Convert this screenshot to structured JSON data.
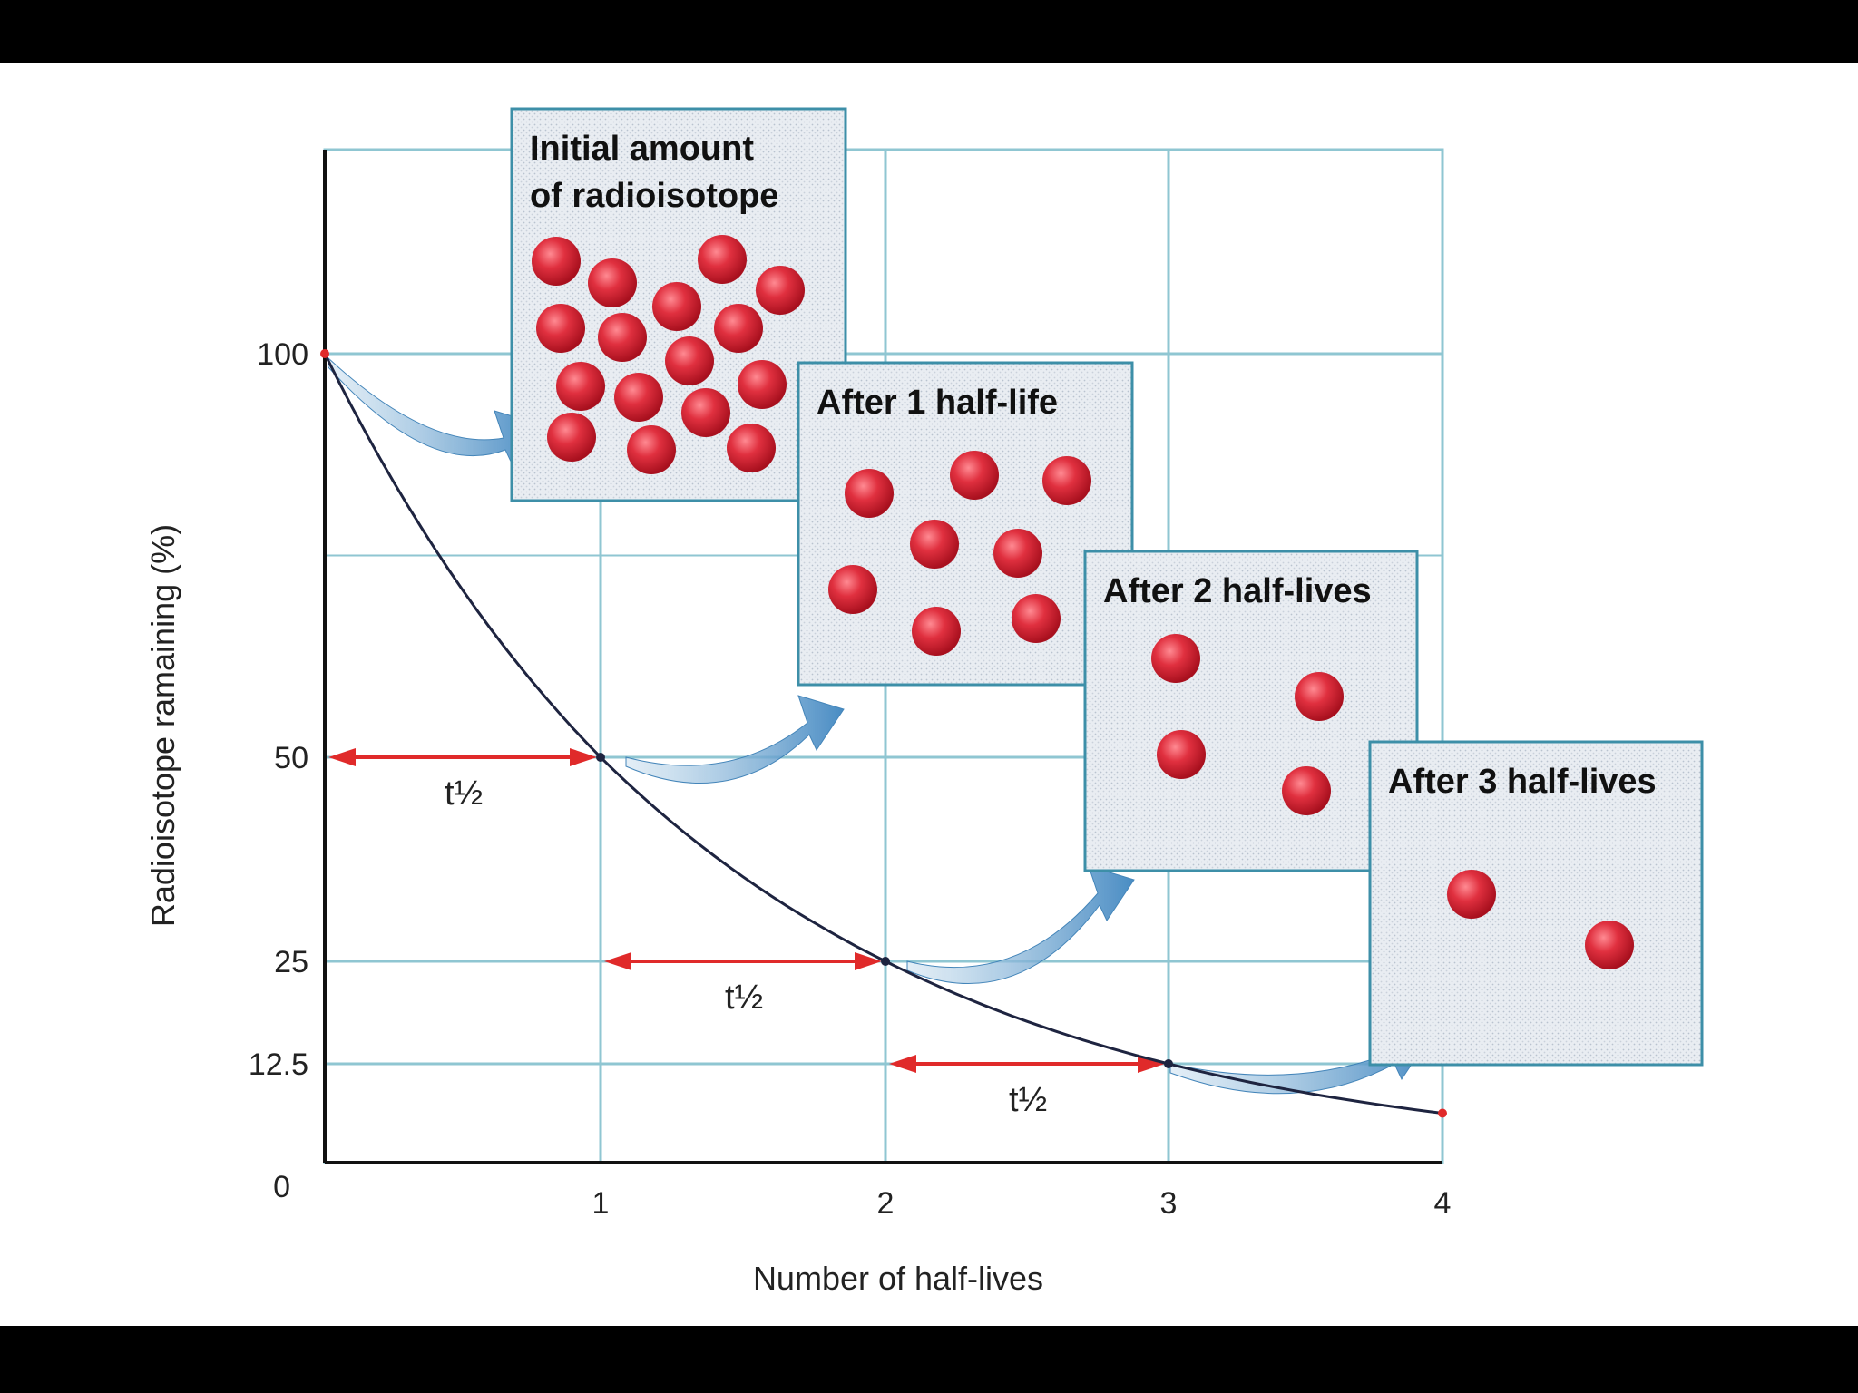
{
  "chart_data": {
    "type": "line",
    "xlabel": "Number of half-lives",
    "ylabel": "Radioisotope ramaining (%)",
    "x_ticks": [
      "0",
      "1",
      "2",
      "3",
      "4"
    ],
    "y_ticks": [
      "0",
      "12.5",
      "25",
      "50",
      "100"
    ],
    "xlim": [
      0,
      4
    ],
    "ylim": [
      0,
      125
    ],
    "grid": true,
    "series": [
      {
        "x": [
          0,
          1,
          2,
          3,
          4
        ],
        "y": [
          100,
          50,
          25,
          12.5,
          6.25
        ]
      }
    ],
    "intervals": [
      {
        "from": 0,
        "to": 1,
        "y": 50,
        "label": "t½"
      },
      {
        "from": 1,
        "to": 2,
        "y": 25,
        "label": "t½"
      },
      {
        "from": 2,
        "to": 3,
        "y": 12.5,
        "label": "t½"
      }
    ],
    "panels": [
      {
        "title_lines": [
          "Initial amount",
          "of radioisotope"
        ],
        "particles": 16
      },
      {
        "title_lines": [
          "After 1 half-life"
        ],
        "particles": 8
      },
      {
        "title_lines": [
          "After 2 half-lives"
        ],
        "particles": 4
      },
      {
        "title_lines": [
          "After 3 half-lives"
        ],
        "particles": 2
      }
    ],
    "colors": {
      "curve": "#1e2440",
      "grid": "#8fc6d2",
      "interval": "#e02a2a",
      "arrow": "#4f93c6",
      "particle": "#d8283a",
      "panel_border": "#3d8fa8"
    }
  }
}
